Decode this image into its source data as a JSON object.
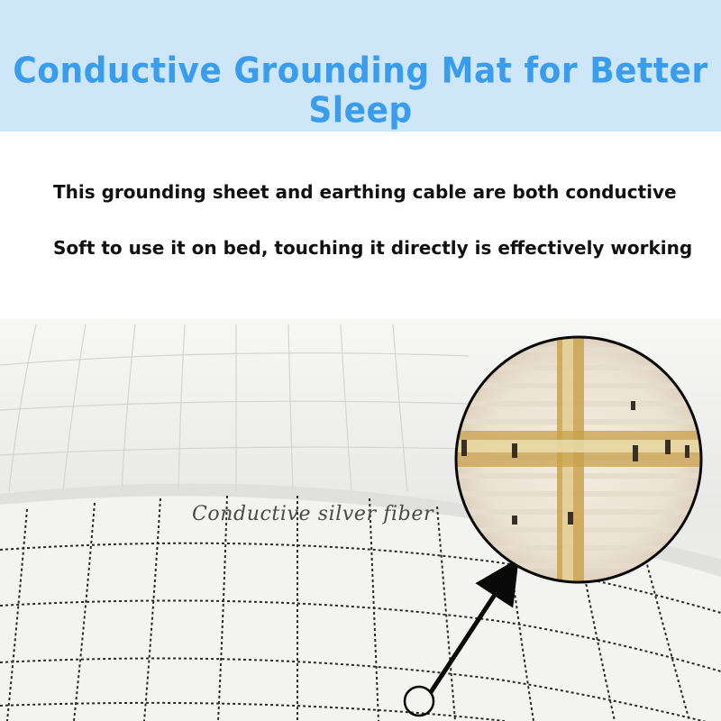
{
  "banner": {
    "title": "Conductive Grounding Mat for Better Sleep",
    "background": "#cde6f8",
    "title_color": "#3a9cec"
  },
  "description": {
    "line1": "This grounding sheet and earthing cable are both conductive",
    "line2": "Soft to use it on bed, touching it directly is effectively working"
  },
  "photo": {
    "callout_label": "Conductive silver fiber",
    "fabric_color": "#f2f2f0",
    "fiber_color": "#c8a24a"
  }
}
